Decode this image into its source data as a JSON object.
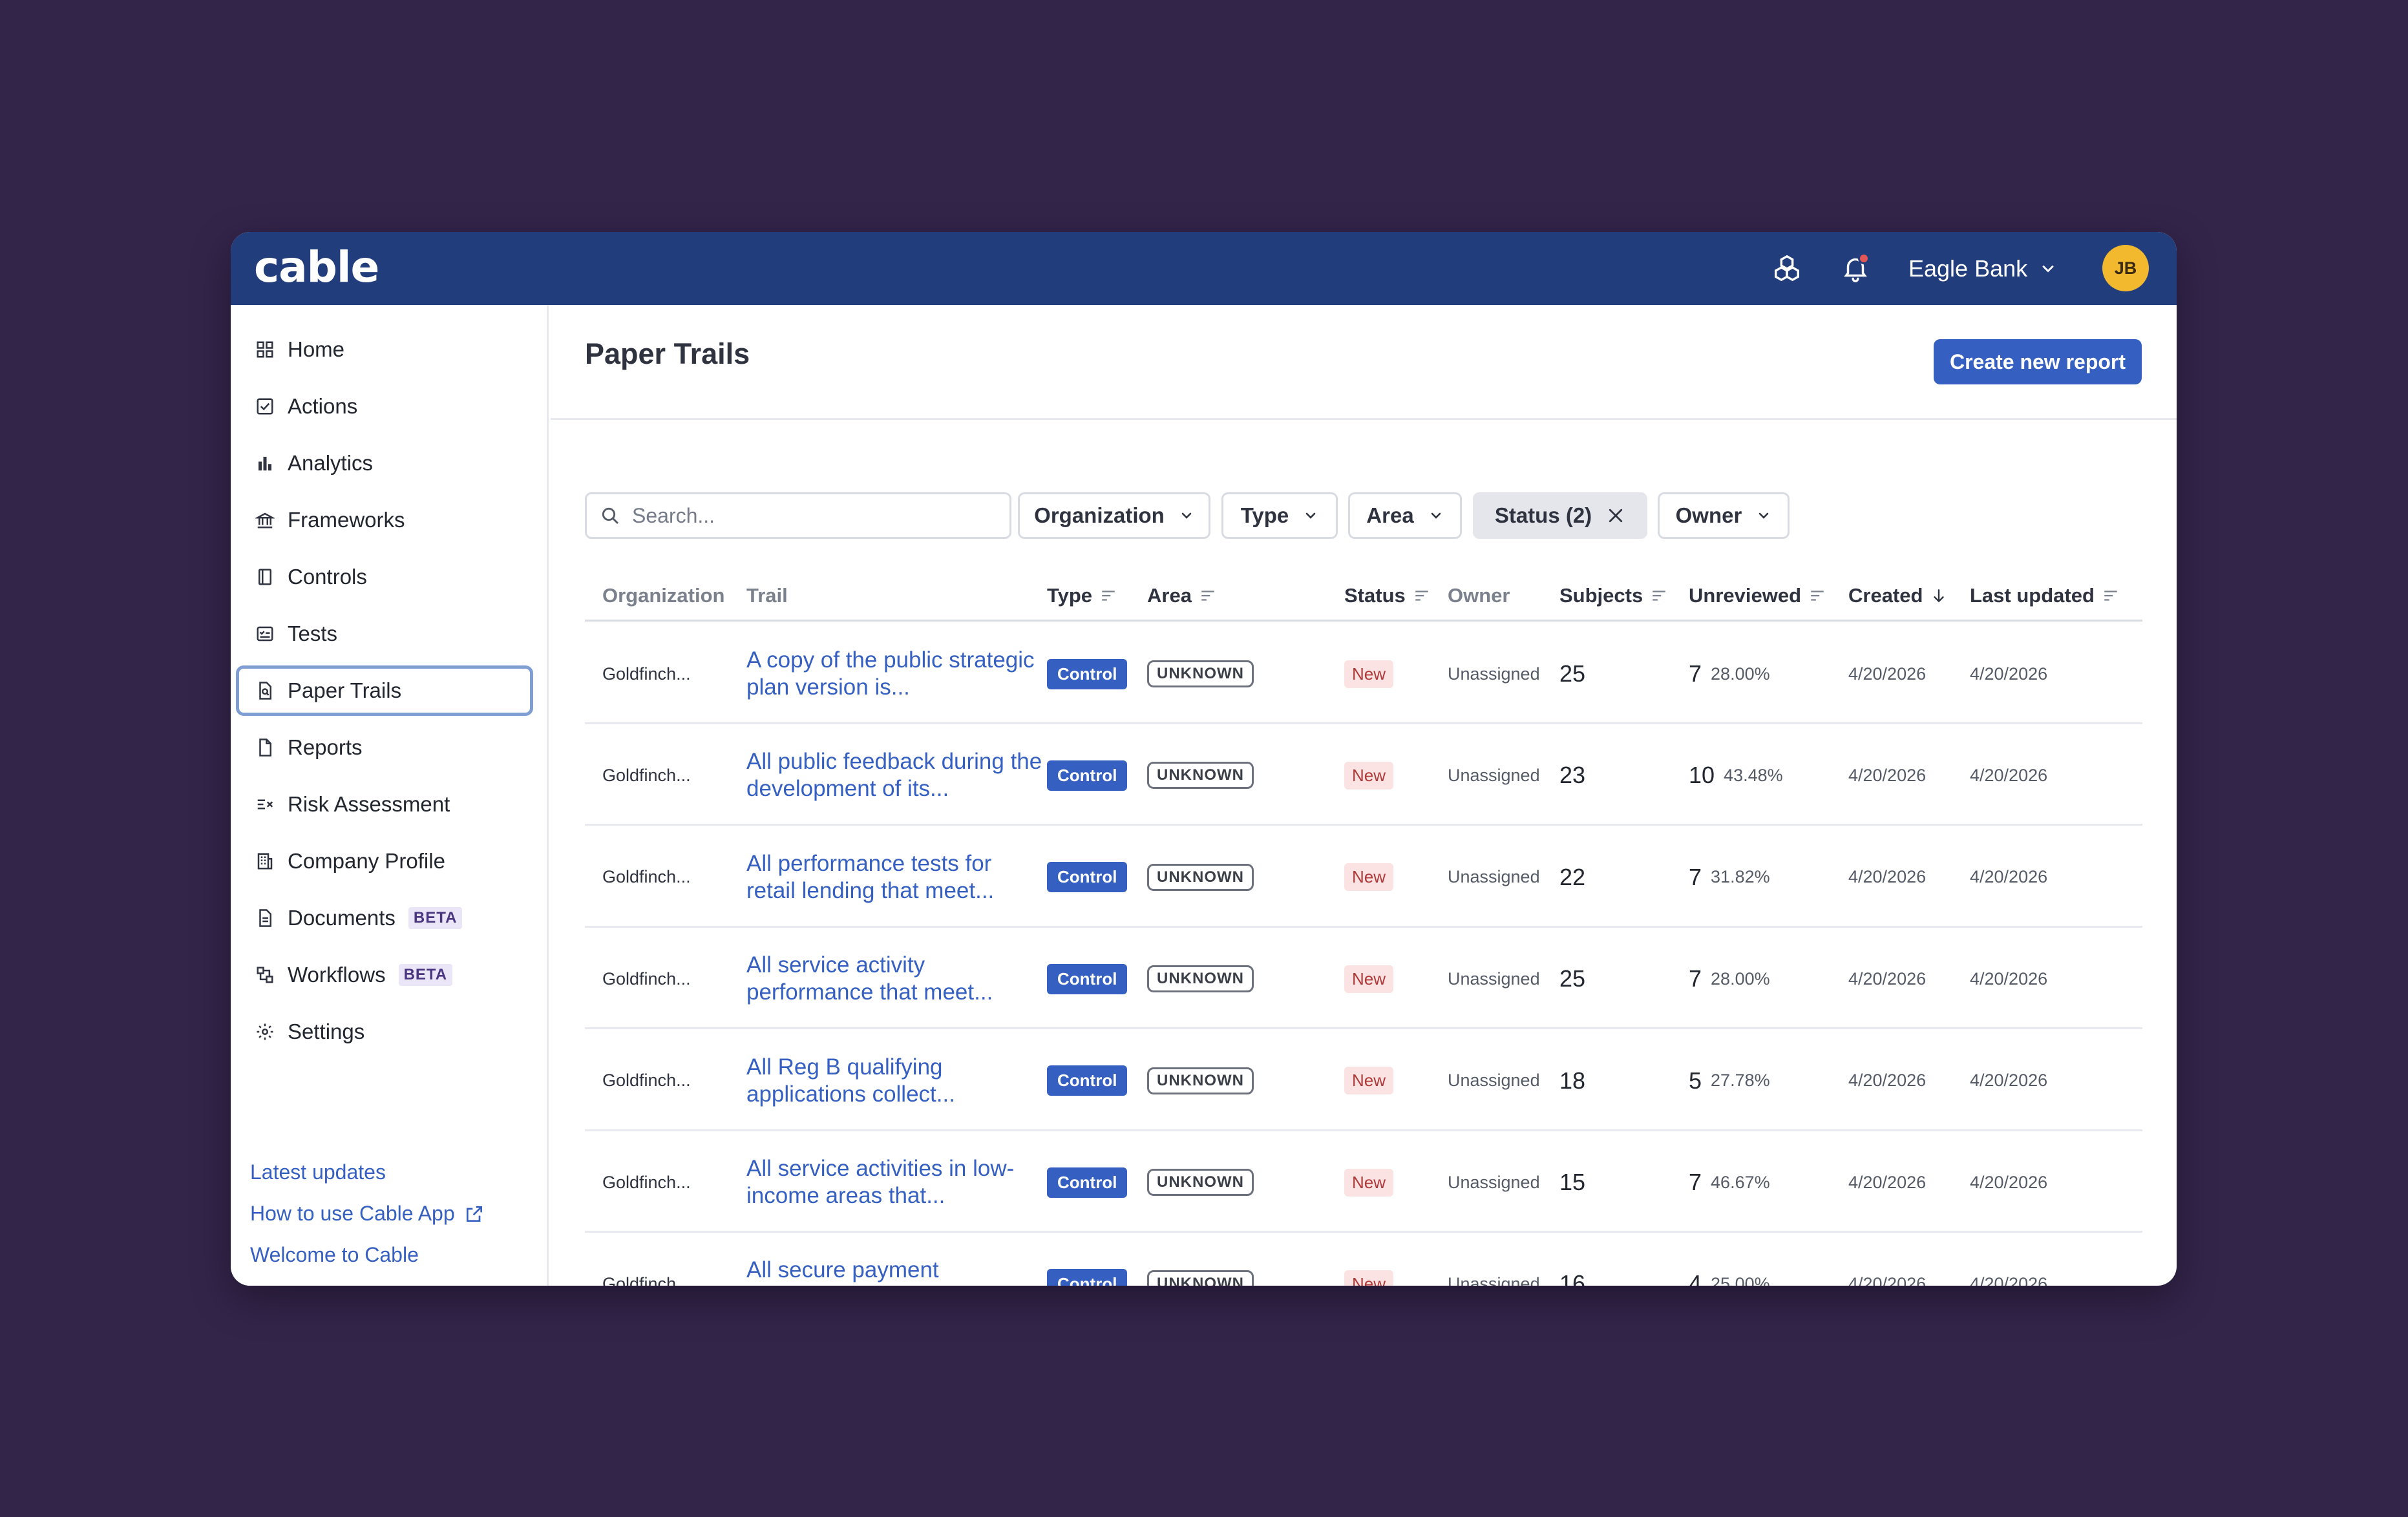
{
  "app": {
    "logo": "cable",
    "org_name": "Eagle Bank",
    "avatar_initials": "JB"
  },
  "sidebar": {
    "items": [
      {
        "label": "Home",
        "icon": "grid-icon"
      },
      {
        "label": "Actions",
        "icon": "checkbox-icon"
      },
      {
        "label": "Analytics",
        "icon": "bar-chart-icon"
      },
      {
        "label": "Frameworks",
        "icon": "bank-icon"
      },
      {
        "label": "Controls",
        "icon": "book-icon"
      },
      {
        "label": "Tests",
        "icon": "checklist-icon"
      },
      {
        "label": "Paper Trails",
        "icon": "file-search-icon",
        "active": true
      },
      {
        "label": "Reports",
        "icon": "file-icon"
      },
      {
        "label": "Risk Assessment",
        "icon": "list-x-icon"
      },
      {
        "label": "Company Profile",
        "icon": "building-icon"
      },
      {
        "label": "Documents",
        "icon": "document-icon",
        "badge": "BETA"
      },
      {
        "label": "Workflows",
        "icon": "workflow-icon",
        "badge": "BETA"
      },
      {
        "label": "Settings",
        "icon": "gear-icon"
      }
    ],
    "links": [
      "Latest updates",
      "How to use Cable App",
      "Welcome to Cable"
    ]
  },
  "page": {
    "title": "Paper Trails",
    "create_button": "Create new report",
    "search_placeholder": "Search...",
    "filters": [
      "Organization",
      "Type",
      "Area",
      "Status (2)",
      "Owner"
    ]
  },
  "table": {
    "columns": [
      "Organization",
      "Trail",
      "Type",
      "Area",
      "Status",
      "Owner",
      "Subjects",
      "Unreviewed",
      "Created",
      "Last updated"
    ],
    "rows": [
      {
        "org": "Goldfinch...",
        "trail": "A copy of the public strategic plan version is...",
        "type": "Control",
        "area": "UNKNOWN",
        "status": "New",
        "owner": "Unassigned",
        "subjects": "25",
        "unreviewed": "7",
        "pct": "28.00%",
        "created": "4/20/2026",
        "updated": "4/20/2026"
      },
      {
        "org": "Goldfinch...",
        "trail": "All public feedback during the development of its...",
        "type": "Control",
        "area": "UNKNOWN",
        "status": "New",
        "owner": "Unassigned",
        "subjects": "23",
        "unreviewed": "10",
        "pct": "43.48%",
        "created": "4/20/2026",
        "updated": "4/20/2026"
      },
      {
        "org": "Goldfinch...",
        "trail": "All performance tests for retail lending that meet...",
        "type": "Control",
        "area": "UNKNOWN",
        "status": "New",
        "owner": "Unassigned",
        "subjects": "22",
        "unreviewed": "7",
        "pct": "31.82%",
        "created": "4/20/2026",
        "updated": "4/20/2026"
      },
      {
        "org": "Goldfinch...",
        "trail": "All service activity performance that meet...",
        "type": "Control",
        "area": "UNKNOWN",
        "status": "New",
        "owner": "Unassigned",
        "subjects": "25",
        "unreviewed": "7",
        "pct": "28.00%",
        "created": "4/20/2026",
        "updated": "4/20/2026"
      },
      {
        "org": "Goldfinch...",
        "trail": "All Reg B qualifying applications collect...",
        "type": "Control",
        "area": "UNKNOWN",
        "status": "New",
        "owner": "Unassigned",
        "subjects": "18",
        "unreviewed": "5",
        "pct": "27.78%",
        "created": "4/20/2026",
        "updated": "4/20/2026"
      },
      {
        "org": "Goldfinch...",
        "trail": "All service activities in low-income areas that...",
        "type": "Control",
        "area": "UNKNOWN",
        "status": "New",
        "owner": "Unassigned",
        "subjects": "15",
        "unreviewed": "7",
        "pct": "46.67%",
        "created": "4/20/2026",
        "updated": "4/20/2026"
      },
      {
        "org": "Goldfinch...",
        "trail": "All secure payment instruments credentials...",
        "type": "Control",
        "area": "UNKNOWN",
        "status": "New",
        "owner": "Unassigned",
        "subjects": "16",
        "unreviewed": "4",
        "pct": "25.00%",
        "created": "4/20/2026",
        "updated": "4/20/2026"
      }
    ]
  },
  "colors": {
    "background": "#33244a",
    "topbar": "#223d7c",
    "accent": "#3560c2",
    "avatar": "#f2b92e",
    "notification": "#e35757"
  }
}
